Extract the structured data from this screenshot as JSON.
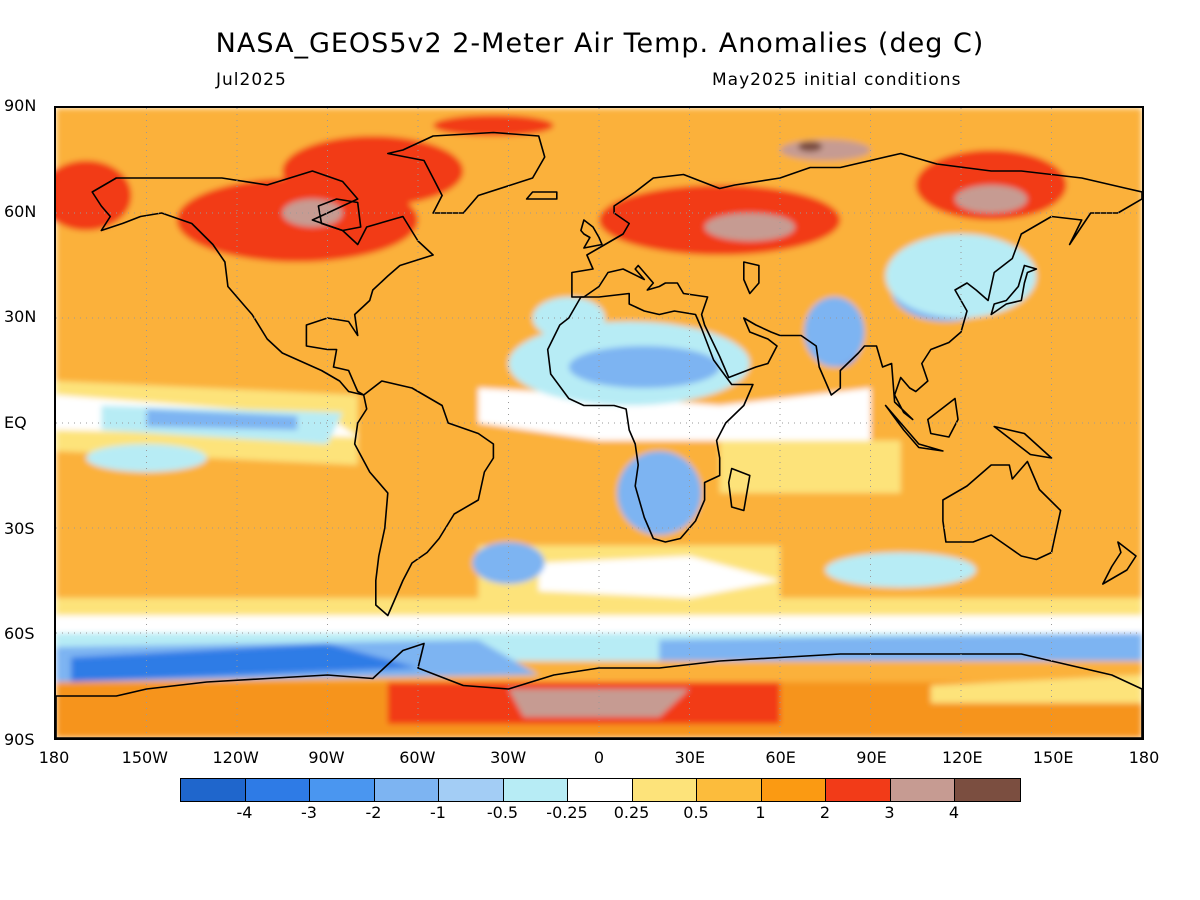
{
  "title": "NASA_GEOS5v2 2-Meter Air Temp. Anomalies (deg C)",
  "subtitle_left": "Jul2025",
  "subtitle_right": "May2025 initial conditions",
  "lat_labels": [
    "90N",
    "60N",
    "30N",
    "EQ",
    "30S",
    "60S",
    "90S"
  ],
  "lon_labels": [
    "180",
    "150W",
    "120W",
    "90W",
    "60W",
    "30W",
    "0",
    "30E",
    "60E",
    "90E",
    "120E",
    "150E",
    "180"
  ],
  "colorbar": {
    "colors": [
      "#1f66cc",
      "#2e7be6",
      "#4a96f0",
      "#7db4f2",
      "#a3cdf5",
      "#b7ecf5",
      "#ffffff",
      "#fde37a",
      "#fcbc3c",
      "#fb9a12",
      "#f23b18",
      "#c69b92",
      "#7b4e40"
    ],
    "labels": [
      "-4",
      "-3",
      "-2",
      "-1",
      "-0.5",
      "-0.25",
      "0.25",
      "0.5",
      "1",
      "2",
      "3",
      "4"
    ]
  },
  "map_colors": {
    "ocean_base": "#fbb13a",
    "deep_warm": "#f6941a",
    "hot": "#f23b18",
    "very_hot": "#c69b92",
    "extreme": "#7b4e40",
    "near_zero": "#ffffff",
    "light_warm": "#fde37a",
    "cool_light": "#b7ecf5",
    "cool": "#7db4f2",
    "cold": "#2e7be6"
  }
}
